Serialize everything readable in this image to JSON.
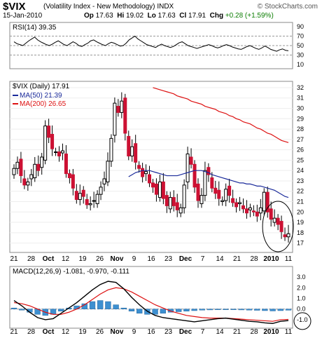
{
  "header": {
    "symbol": "$VIX",
    "description": "(Volatility Index - New Methodology)",
    "exchange": "INDX",
    "date": "15-Jan-2010",
    "open_label": "Op",
    "open": "17.63",
    "high_label": "Hi",
    "high": "19.02",
    "low_label": "Lo",
    "low": "17.63",
    "close_label": "Cl",
    "close": "17.91",
    "change_label": "Chg",
    "change": "+0.28 (+1.59%)",
    "watermark": "© StockCharts.com"
  },
  "colors": {
    "up": "#ffffff",
    "down": "#cc1133",
    "ma50": "#1a2a9a",
    "ma200": "#dd1111",
    "macd": "#000000",
    "signal": "#dd1111",
    "hist": "#3d8fd0"
  },
  "chart_data": [
    {
      "type": "line",
      "title": "RSI(14) 39.35",
      "ylim": [
        10,
        90
      ],
      "yticks": [
        "90",
        "70",
        "50",
        "30",
        "10"
      ],
      "reference_lines": [
        70,
        50,
        30
      ],
      "values": [
        58,
        54,
        52,
        50,
        55,
        60,
        64,
        68,
        62,
        58,
        55,
        52,
        50,
        53,
        57,
        60,
        56,
        52,
        50,
        54,
        58,
        55,
        50,
        48,
        52,
        55,
        60,
        62,
        58,
        55,
        52,
        50,
        54,
        57,
        55,
        52,
        49,
        50,
        55,
        62,
        66,
        70,
        64,
        60,
        56,
        52,
        50,
        48,
        46,
        50,
        53,
        50,
        48,
        46,
        48,
        52,
        56,
        58,
        54,
        50,
        48,
        46,
        44,
        46,
        48,
        50,
        52,
        50,
        47,
        45,
        47,
        50,
        52,
        50,
        47,
        45,
        43,
        42,
        45,
        48,
        50,
        47,
        44,
        42,
        45,
        49,
        46,
        42,
        40,
        38,
        41,
        43,
        40,
        39
      ]
    },
    {
      "type": "candlestick",
      "title": "$VIX (Daily) 17.91",
      "legend": [
        {
          "name": "MA(50) 21.39"
        },
        {
          "name": "MA(200) 26.65"
        }
      ],
      "ylim": [
        16.5,
        32.2
      ],
      "yticks": [
        17,
        18,
        19,
        20,
        21,
        22,
        23,
        24,
        25,
        26,
        27,
        28,
        29,
        30,
        31,
        32
      ],
      "xticks": [
        "21",
        "28",
        "Oct",
        "12",
        "19",
        "26",
        "Nov",
        "9",
        "16",
        "23",
        "Dec",
        "7",
        "14",
        "21",
        "28",
        "2010",
        "11"
      ],
      "annotation": "circle",
      "closes": [
        24.2,
        24.8,
        23.5,
        22.6,
        22.9,
        23.6,
        24.6,
        24.0,
        25.3,
        28.3,
        27.2,
        26.1,
        25.8,
        25.4,
        25.9,
        23.7,
        23.3,
        22.3,
        21.2,
        21.8,
        21.5,
        20.7,
        20.8,
        21.1,
        21.7,
        22.4,
        23.2,
        24.9,
        27.1,
        30.5,
        29.6,
        30.7,
        27.6,
        25.4,
        26.3,
        24.8,
        24.2,
        23.4,
        23.9,
        22.8,
        22.4,
        21.7,
        22.9,
        21.3,
        20.6,
        21.4,
        20.6,
        20.2,
        20.4,
        22.6,
        25.6,
        24.6,
        22.4,
        21.1,
        21.6,
        24.0,
        23.6,
        22.3,
        21.8,
        21.3,
        21.1,
        22.2,
        21.6,
        20.9,
        20.5,
        20.9,
        20.3,
        19.9,
        20.4,
        20.0,
        19.6,
        20.4,
        21.9,
        20.0,
        19.3,
        19.4,
        18.8,
        18.1,
        17.6,
        17.9
      ],
      "ma50": [
        23.4,
        23.6,
        23.8,
        23.9,
        24.0,
        24.0,
        24.0,
        23.9,
        23.8,
        23.7,
        23.6,
        23.5,
        23.5,
        23.5,
        23.5,
        23.6,
        23.7,
        23.8,
        23.9,
        24.0,
        24.0,
        24.0,
        23.9,
        23.8,
        23.6,
        23.5,
        23.4,
        23.3,
        23.2,
        23.1,
        23.0,
        22.9,
        22.8,
        22.8,
        22.7,
        22.7,
        22.6,
        22.5,
        22.5,
        22.4,
        22.3,
        22.2,
        22.1,
        21.9,
        21.7,
        21.5,
        21.4
      ],
      "ma200": [
        32.0,
        31.9,
        31.8,
        31.7,
        31.6,
        31.5,
        31.4,
        31.2,
        31.1,
        31.0,
        30.9,
        30.7,
        30.6,
        30.5,
        30.4,
        30.2,
        30.1,
        30.0,
        29.9,
        29.7,
        29.6,
        29.5,
        29.3,
        29.2,
        29.0,
        28.9,
        28.7,
        28.6,
        28.5,
        28.3,
        28.1,
        28.0,
        27.8,
        27.6,
        27.5,
        27.3,
        27.1,
        26.9,
        26.8,
        26.7
      ]
    },
    {
      "type": "line+histogram",
      "title": "MACD(12,26,9) -1.081, -0.970, -0.111",
      "ylim": [
        -1.4,
        3.2
      ],
      "yticks": [
        "3.0",
        "2.0",
        "1.0",
        "0.0",
        "-1.0"
      ],
      "xticks": [
        "21",
        "28",
        "Oct",
        "12",
        "19",
        "26",
        "Nov",
        "9",
        "16",
        "23",
        "Dec",
        "7",
        "14",
        "21",
        "28",
        "2010",
        "11"
      ],
      "annotation": "circle",
      "macd": [
        0.8,
        0.3,
        -0.3,
        -0.8,
        -1.0,
        -0.9,
        -0.4,
        0.1,
        0.6,
        1.2,
        1.8,
        2.3,
        2.6,
        2.5,
        1.9,
        1.1,
        0.4,
        -0.2,
        -0.6,
        -0.8,
        -0.9,
        -1.0,
        -1.1,
        -1.2,
        -1.1,
        -1.0,
        -0.9,
        -0.85,
        -0.95,
        -1.05,
        -1.15,
        -1.2,
        -1.3,
        -1.35,
        -1.15,
        -1.08
      ],
      "signal": [
        0.6,
        0.5,
        0.3,
        0.0,
        -0.3,
        -0.5,
        -0.5,
        -0.3,
        0.0,
        0.4,
        0.9,
        1.4,
        1.8,
        2.0,
        1.9,
        1.6,
        1.2,
        0.8,
        0.4,
        0.1,
        -0.2,
        -0.4,
        -0.6,
        -0.7,
        -0.8,
        -0.85,
        -0.85,
        -0.85,
        -0.9,
        -0.95,
        -1.0,
        -1.05,
        -1.1,
        -1.15,
        -1.0,
        -0.97
      ],
      "histogram": [
        0.1,
        -0.1,
        -0.3,
        -0.5,
        -0.6,
        -0.5,
        -0.2,
        0.1,
        0.3,
        0.5,
        0.7,
        0.8,
        0.7,
        0.4,
        0.1,
        -0.2,
        -0.4,
        -0.5,
        -0.5,
        -0.4,
        -0.3,
        -0.25,
        -0.2,
        -0.15,
        -0.1,
        -0.08,
        -0.05,
        -0.03,
        -0.05,
        -0.08,
        -0.1,
        -0.12,
        -0.15,
        -0.18,
        -0.15,
        -0.11
      ]
    }
  ]
}
